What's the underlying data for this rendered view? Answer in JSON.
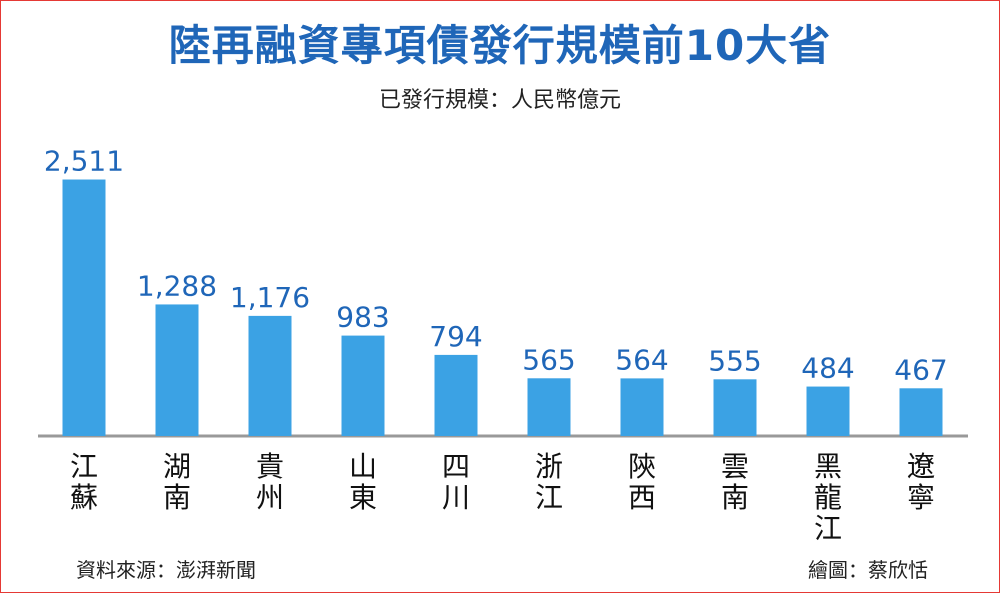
{
  "chart_data": {
    "type": "bar",
    "title": "陸再融資專項債發行規模前10大省",
    "subtitle": "已發行規模：人民幣億元",
    "categories": [
      "江蘇",
      "湖南",
      "貴州",
      "山東",
      "四川",
      "浙江",
      "陝西",
      "雲南",
      "黑龍江",
      "遼寧"
    ],
    "values": [
      2511,
      1288,
      1176,
      983,
      794,
      565,
      564,
      555,
      484,
      467
    ],
    "value_labels": [
      "2,511",
      "1,288",
      "1,176",
      "983",
      "794",
      "565",
      "564",
      "555",
      "484",
      "467"
    ],
    "ylim": [
      0,
      2800
    ],
    "grid": false,
    "bar_color": "#3ba2e4",
    "axis_color": "#999999",
    "title_color": "#1f66b8"
  },
  "footer": {
    "source": "資料來源：澎湃新聞",
    "credit": "繪圖：蔡欣恬"
  }
}
